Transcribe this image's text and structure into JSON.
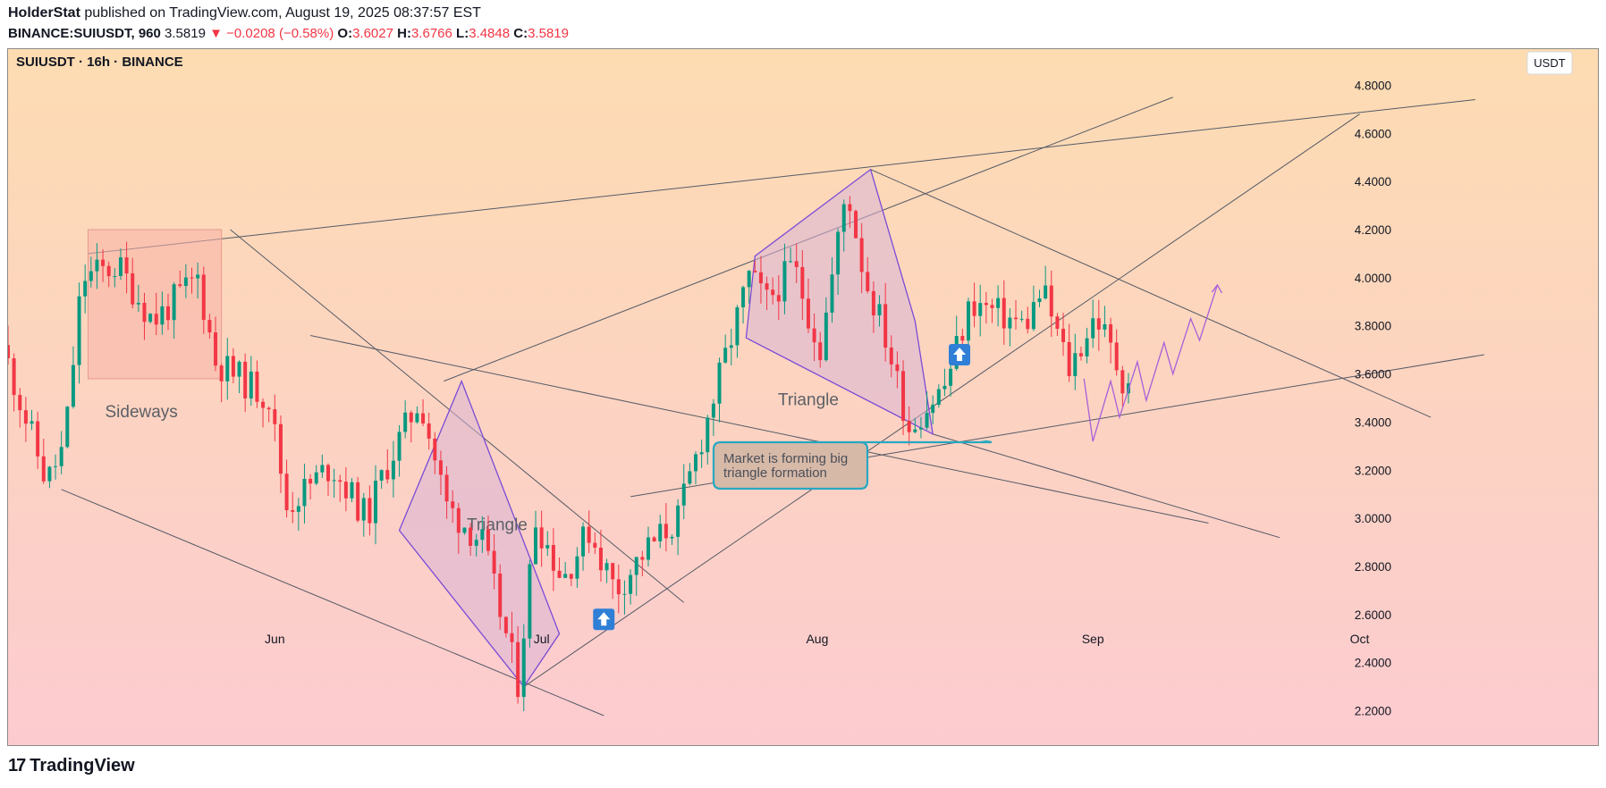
{
  "header": {
    "author": "HolderStat",
    "published_text": "published on TradingView.com, August 19, 2025 08:37:57 EST",
    "symbol": "BINANCE:SUIUSDT, 960",
    "last": "3.5819",
    "change": "−0.0208 (−0.58%)",
    "o_label": "O:",
    "o": "3.6027",
    "h_label": "H:",
    "h": "3.6766",
    "l_label": "L:",
    "l": "3.4848",
    "c_label": "C:",
    "c": "3.5819"
  },
  "chart_title": "SUIUSDT · 16h · BINANCE",
  "currency_button": "USDT",
  "footer": {
    "brand": "TradingView",
    "logo": "17"
  },
  "colors": {
    "up": "#089981",
    "down": "#f23645",
    "bg_top": "#fddcb2",
    "bg_bottom": "#fccbd0",
    "pattern_stroke": "#7b4bd6",
    "callout_border": "#26a8c2"
  },
  "chart_data": {
    "type": "candlestick",
    "title": "SUIUSDT · 16h · BINANCE",
    "ylim": [
      2.05,
      4.95
    ],
    "y_ticks": [
      "4.8000",
      "4.6000",
      "4.4000",
      "4.2000",
      "4.0000",
      "3.8000",
      "3.6000",
      "3.4000",
      "3.2000",
      "3.0000",
      "2.8000",
      "2.6000",
      "2.4000",
      "2.2000"
    ],
    "x_ticks": [
      {
        "label": "Jun",
        "date": "2025-06-01"
      },
      {
        "label": "Jul",
        "date": "2025-07-01"
      },
      {
        "label": "Aug",
        "date": "2025-08-01"
      },
      {
        "label": "Sep",
        "date": "2025-09-01"
      },
      {
        "label": "Oct",
        "date": "2025-10-01"
      }
    ],
    "x_range": [
      "2025-05-02",
      "2025-10-28"
    ],
    "anchors": [
      [
        "2025-05-02",
        3.72
      ],
      [
        "2025-05-07",
        3.15
      ],
      [
        "2025-05-09",
        3.3
      ],
      [
        "2025-05-11",
        4.0
      ],
      [
        "2025-05-15",
        4.05
      ],
      [
        "2025-05-19",
        3.82
      ],
      [
        "2025-05-24",
        4.0
      ],
      [
        "2025-05-26",
        3.65
      ],
      [
        "2025-06-01",
        3.5
      ],
      [
        "2025-06-03",
        3.05
      ],
      [
        "2025-06-08",
        3.22
      ],
      [
        "2025-06-12",
        3.0
      ],
      [
        "2025-06-14",
        3.2
      ],
      [
        "2025-06-18",
        3.5
      ],
      [
        "2025-06-21",
        3.05
      ],
      [
        "2025-06-25",
        2.9
      ],
      [
        "2025-06-29",
        2.32
      ],
      [
        "2025-07-01",
        3.0
      ],
      [
        "2025-07-04",
        2.75
      ],
      [
        "2025-07-07",
        2.95
      ],
      [
        "2025-07-10",
        2.7
      ],
      [
        "2025-07-13",
        2.85
      ],
      [
        "2025-07-17",
        3.0
      ],
      [
        "2025-07-21",
        3.5
      ],
      [
        "2025-07-25",
        4.0
      ],
      [
        "2025-07-27",
        3.9
      ],
      [
        "2025-07-30",
        4.05
      ],
      [
        "2025-08-02",
        3.7
      ],
      [
        "2025-08-05",
        4.38
      ],
      [
        "2025-08-07",
        4.0
      ],
      [
        "2025-08-09",
        3.8
      ],
      [
        "2025-08-12",
        3.38
      ],
      [
        "2025-08-16",
        3.55
      ],
      [
        "2025-08-19",
        3.9
      ],
      [
        "2025-08-22",
        3.85
      ],
      [
        "2025-08-25",
        3.8
      ],
      [
        "2025-08-27",
        3.95
      ],
      [
        "2025-08-30",
        3.62
      ],
      [
        "2025-09-02",
        3.85
      ],
      [
        "2025-09-05",
        3.58
      ]
    ],
    "trendlines": [
      [
        [
          "2025-05-11",
          4.1
        ],
        [
          "2025-10-14",
          4.74
        ]
      ],
      [
        [
          "2025-05-27",
          4.2
        ],
        [
          "2025-07-17",
          2.65
        ]
      ],
      [
        [
          "2025-06-05",
          3.76
        ],
        [
          "2025-09-14",
          2.98
        ]
      ],
      [
        [
          "2025-05-08",
          3.12
        ],
        [
          "2025-07-08",
          2.18
        ]
      ],
      [
        [
          "2025-06-20",
          3.57
        ],
        [
          "2025-09-10",
          4.75
        ]
      ],
      [
        [
          "2025-06-29",
          2.3
        ],
        [
          "2025-10-01",
          4.68
        ]
      ],
      [
        [
          "2025-07-11",
          3.09
        ],
        [
          "2025-10-15",
          3.68
        ]
      ],
      [
        [
          "2025-08-07",
          4.45
        ],
        [
          "2025-10-09",
          3.42
        ]
      ],
      [
        [
          "2025-08-14",
          3.35
        ],
        [
          "2025-09-22",
          2.92
        ]
      ]
    ],
    "patterns": [
      {
        "type": "sideways-box",
        "x": [
          "2025-05-11",
          "2025-05-26"
        ],
        "y": [
          3.58,
          4.2
        ],
        "label": "Sideways",
        "label_at": [
          "2025-05-17",
          3.42
        ]
      },
      {
        "type": "triangle",
        "points": [
          [
            "2025-06-15",
            2.95
          ],
          [
            "2025-06-22",
            3.57
          ],
          [
            "2025-07-03",
            2.52
          ],
          [
            "2025-06-29",
            2.3
          ]
        ],
        "label": "Triangle",
        "label_at": [
          "2025-06-26",
          2.95
        ]
      },
      {
        "type": "triangle",
        "points": [
          [
            "2025-07-24",
            3.75
          ],
          [
            "2025-07-25",
            4.09
          ],
          [
            "2025-08-07",
            4.45
          ],
          [
            "2025-08-12",
            3.82
          ],
          [
            "2025-08-14",
            3.35
          ]
        ],
        "label": "Triangle",
        "label_at": [
          "2025-07-31",
          3.47
        ]
      }
    ],
    "projection": [
      [
        "2025-08-31",
        3.58
      ],
      [
        "2025-09-01",
        3.32
      ],
      [
        "2025-09-03",
        3.57
      ],
      [
        "2025-09-04",
        3.42
      ],
      [
        "2025-09-06",
        3.65
      ],
      [
        "2025-09-07",
        3.49
      ],
      [
        "2025-09-09",
        3.73
      ],
      [
        "2025-09-10",
        3.6
      ],
      [
        "2025-09-12",
        3.83
      ],
      [
        "2025-09-13",
        3.74
      ],
      [
        "2025-09-15",
        3.97
      ]
    ],
    "markers": [
      [
        "2025-07-08",
        2.58
      ],
      [
        "2025-08-17",
        3.68
      ]
    ],
    "annotation": {
      "text_line1": "Market is forming big",
      "text_line2": "triangle formation",
      "point": [
        "2025-08-20",
        3.32
      ]
    }
  }
}
